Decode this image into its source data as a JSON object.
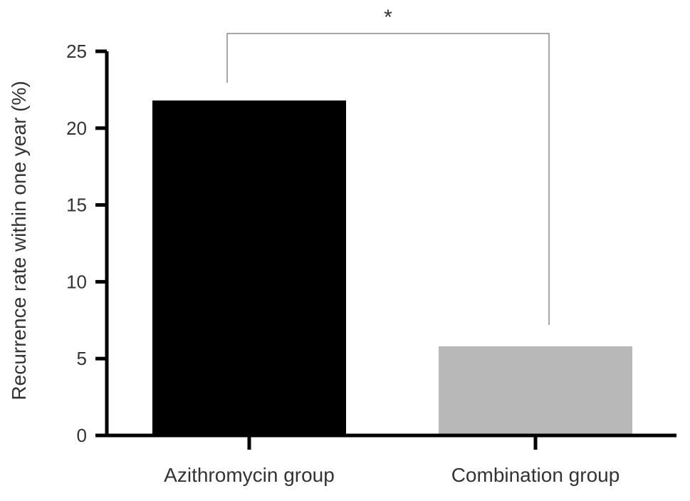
{
  "chart_data": {
    "type": "bar",
    "title": "",
    "xlabel": "",
    "ylabel": "Recurrence rate within one year (%)",
    "ylim": [
      0,
      25
    ],
    "yticks": [
      0,
      5,
      10,
      15,
      20,
      25
    ],
    "ytick_labels": [
      "0",
      "5",
      "10",
      "15",
      "20",
      "25"
    ],
    "categories": [
      "Azithromycin group",
      "Combination group"
    ],
    "values": [
      21.8,
      5.8
    ],
    "bar_colors": [
      "#000000",
      "#b8b8b8"
    ],
    "grid": false,
    "annotations": [
      {
        "text": "*",
        "type": "significance-bracket",
        "between": [
          "Azithromycin group",
          "Combination group"
        ]
      }
    ]
  }
}
